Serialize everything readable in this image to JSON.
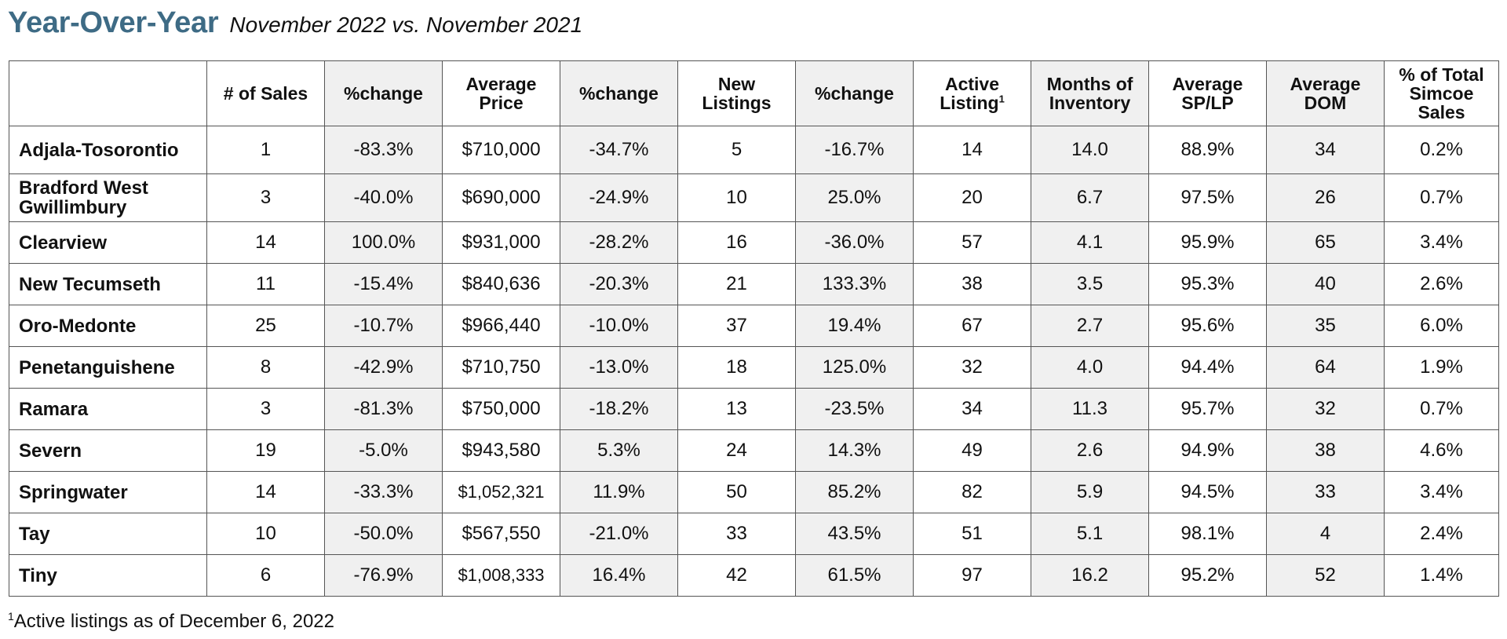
{
  "heading": {
    "title": "Year-Over-Year",
    "subtitle": "November 2022 vs. November 2021"
  },
  "table": {
    "headers": [
      "",
      "# of Sales",
      "%change",
      "Average Price",
      "%change",
      "New Listings",
      "%change",
      "Active Listing",
      "Months of Inventory",
      "Average SP/LP",
      "Average DOM",
      "% of Total Simcoe Sales"
    ],
    "active_listing_marker": "1",
    "rows": [
      [
        "Adjala-Tosorontio",
        "1",
        "-83.3%",
        "$710,000",
        "-34.7%",
        "5",
        "-16.7%",
        "14",
        "14.0",
        "88.9%",
        "34",
        "0.2%"
      ],
      [
        "Bradford West Gwillimbury",
        "3",
        "-40.0%",
        "$690,000",
        "-24.9%",
        "10",
        "25.0%",
        "20",
        "6.7",
        "97.5%",
        "26",
        "0.7%"
      ],
      [
        "Clearview",
        "14",
        "100.0%",
        "$931,000",
        "-28.2%",
        "16",
        "-36.0%",
        "57",
        "4.1",
        "95.9%",
        "65",
        "3.4%"
      ],
      [
        "New Tecumseth",
        "11",
        "-15.4%",
        "$840,636",
        "-20.3%",
        "21",
        "133.3%",
        "38",
        "3.5",
        "95.3%",
        "40",
        "2.6%"
      ],
      [
        "Oro-Medonte",
        "25",
        "-10.7%",
        "$966,440",
        "-10.0%",
        "37",
        "19.4%",
        "67",
        "2.7",
        "95.6%",
        "35",
        "6.0%"
      ],
      [
        "Penetanguishene",
        "8",
        "-42.9%",
        "$710,750",
        "-13.0%",
        "18",
        "125.0%",
        "32",
        "4.0",
        "94.4%",
        "64",
        "1.9%"
      ],
      [
        "Ramara",
        "3",
        "-81.3%",
        "$750,000",
        "-18.2%",
        "13",
        "-23.5%",
        "34",
        "11.3",
        "95.7%",
        "32",
        "0.7%"
      ],
      [
        "Severn",
        "19",
        "-5.0%",
        "$943,580",
        "5.3%",
        "24",
        "14.3%",
        "49",
        "2.6",
        "94.9%",
        "38",
        "4.6%"
      ],
      [
        "Springwater",
        "14",
        "-33.3%",
        "$1,052,321",
        "11.9%",
        "50",
        "85.2%",
        "82",
        "5.9",
        "94.5%",
        "33",
        "3.4%"
      ],
      [
        "Tay",
        "10",
        "-50.0%",
        "$567,550",
        "-21.0%",
        "33",
        "43.5%",
        "51",
        "5.1",
        "98.1%",
        "4",
        "2.4%"
      ],
      [
        "Tiny",
        "6",
        "-76.9%",
        "$1,008,333",
        "16.4%",
        "42",
        "61.5%",
        "97",
        "16.2",
        "95.2%",
        "52",
        "1.4%"
      ]
    ]
  },
  "footnote": {
    "marker": "1",
    "text": "Active listings as of December 6, 2022"
  }
}
